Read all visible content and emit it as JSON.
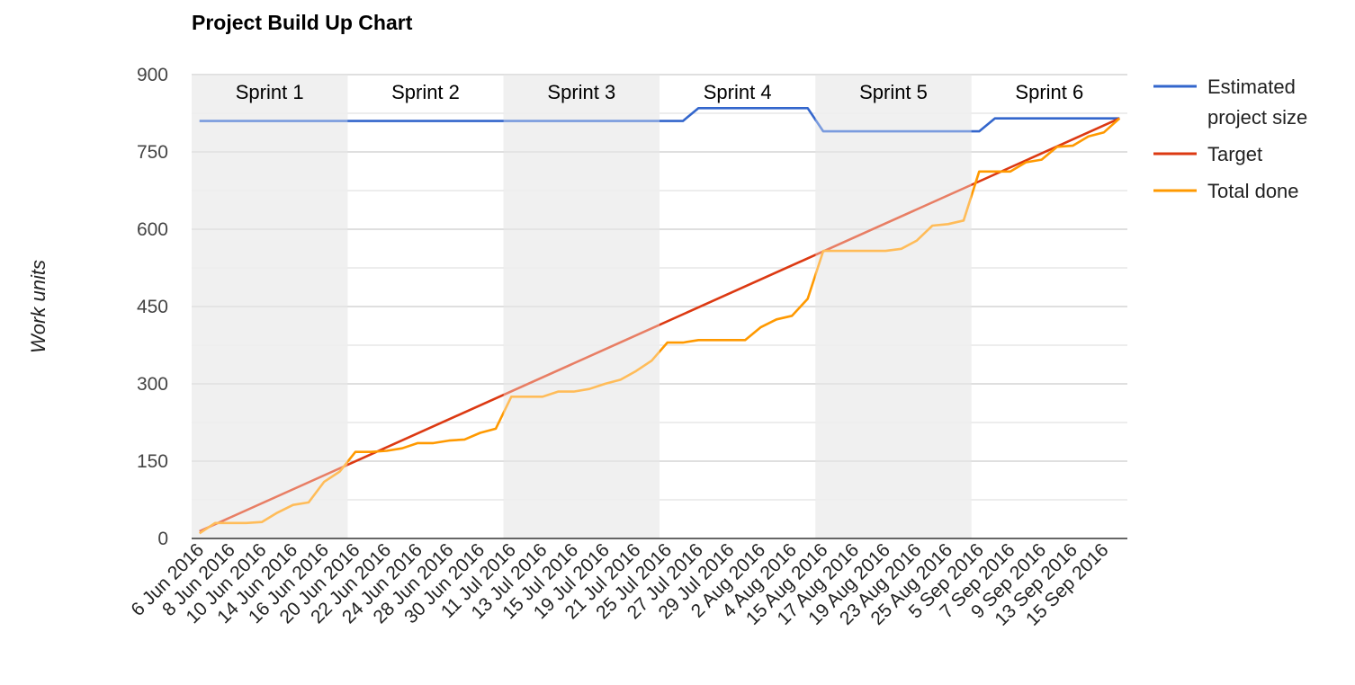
{
  "chart_data": {
    "type": "line",
    "title": "Project Build Up Chart",
    "xlabel": "",
    "ylabel": "Work units",
    "ylim": [
      0,
      900
    ],
    "y_ticks": [
      0,
      150,
      300,
      450,
      600,
      750,
      900
    ],
    "grid": true,
    "legend_position": "right",
    "x_tick_labels": [
      "6 Jun 2016",
      "8 Jun 2016",
      "10 Jun 2016",
      "14 Jun 2016",
      "16 Jun 2016",
      "20 Jun 2016",
      "22 Jun 2016",
      "24 Jun 2016",
      "28 Jun 2016",
      "30 Jun 2016",
      "11 Jul 2016",
      "13 Jul 2016",
      "15 Jul 2016",
      "19 Jul 2016",
      "21 Jul 2016",
      "25 Jul 2016",
      "27 Jul 2016",
      "29 Jul 2016",
      "2 Aug 2016",
      "4 Aug 2016",
      "15 Aug 2016",
      "17 Aug 2016",
      "19 Aug 2016",
      "23 Aug 2016",
      "25 Aug 2016",
      "5 Sep 2016",
      "7 Sep 2016",
      "9 Sep 2016",
      "13 Sep 2016",
      "15 Sep 2016"
    ],
    "x_count": 60,
    "sprints": [
      {
        "label": "Sprint 1",
        "start": 0,
        "end": 10,
        "shaded": true
      },
      {
        "label": "Sprint 2",
        "start": 10,
        "end": 20,
        "shaded": false
      },
      {
        "label": "Sprint 3",
        "start": 20,
        "end": 30,
        "shaded": true
      },
      {
        "label": "Sprint 4",
        "start": 30,
        "end": 40,
        "shaded": false
      },
      {
        "label": "Sprint 5",
        "start": 40,
        "end": 50,
        "shaded": true
      },
      {
        "label": "Sprint 6",
        "start": 50,
        "end": 60,
        "shaded": false
      }
    ],
    "series": [
      {
        "name": "Estimated project size",
        "color": "#3366cc",
        "points": [
          [
            0,
            810
          ],
          [
            31,
            810
          ],
          [
            32,
            835
          ],
          [
            39,
            835
          ],
          [
            40,
            790
          ],
          [
            50,
            790
          ],
          [
            51,
            815
          ],
          [
            59,
            815
          ]
        ]
      },
      {
        "name": "Target",
        "color": "#dc3912",
        "points": [
          [
            0,
            14
          ],
          [
            59,
            815
          ]
        ]
      },
      {
        "name": "Total done",
        "color": "#ff9900",
        "points": [
          [
            0,
            10
          ],
          [
            1,
            30
          ],
          [
            2,
            30
          ],
          [
            3,
            30
          ],
          [
            4,
            32
          ],
          [
            5,
            50
          ],
          [
            6,
            65
          ],
          [
            7,
            70
          ],
          [
            8,
            110
          ],
          [
            9,
            130
          ],
          [
            10,
            168
          ],
          [
            11,
            168
          ],
          [
            12,
            170
          ],
          [
            13,
            175
          ],
          [
            14,
            185
          ],
          [
            15,
            185
          ],
          [
            16,
            190
          ],
          [
            17,
            192
          ],
          [
            18,
            205
          ],
          [
            19,
            213
          ],
          [
            20,
            275
          ],
          [
            21,
            275
          ],
          [
            22,
            275
          ],
          [
            23,
            285
          ],
          [
            24,
            285
          ],
          [
            25,
            290
          ],
          [
            26,
            300
          ],
          [
            27,
            308
          ],
          [
            28,
            325
          ],
          [
            29,
            345
          ],
          [
            30,
            380
          ],
          [
            31,
            380
          ],
          [
            32,
            385
          ],
          [
            33,
            385
          ],
          [
            34,
            385
          ],
          [
            35,
            385
          ],
          [
            36,
            410
          ],
          [
            37,
            425
          ],
          [
            38,
            432
          ],
          [
            39,
            465
          ],
          [
            40,
            558
          ],
          [
            41,
            558
          ],
          [
            42,
            558
          ],
          [
            43,
            558
          ],
          [
            44,
            558
          ],
          [
            45,
            562
          ],
          [
            46,
            578
          ],
          [
            47,
            607
          ],
          [
            48,
            610
          ],
          [
            49,
            617
          ],
          [
            50,
            712
          ],
          [
            51,
            712
          ],
          [
            52,
            712
          ],
          [
            53,
            730
          ],
          [
            54,
            735
          ],
          [
            55,
            760
          ],
          [
            56,
            762
          ],
          [
            57,
            780
          ],
          [
            58,
            788
          ],
          [
            59,
            815
          ]
        ]
      }
    ]
  }
}
